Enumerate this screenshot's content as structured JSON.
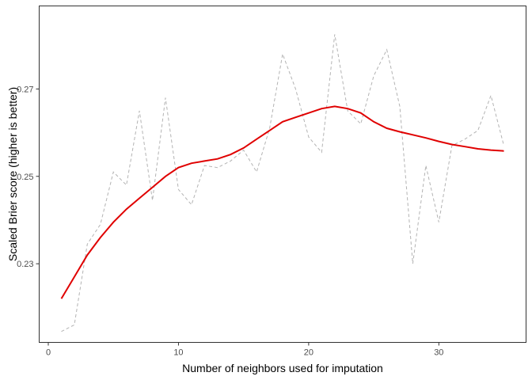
{
  "chart_data": {
    "type": "line",
    "xlabel": "Number of neighbors used for imputation",
    "ylabel": "Scaled Brier score (higher is better)",
    "xlim": [
      -0.7,
      36.7
    ],
    "ylim": [
      0.212,
      0.289
    ],
    "xticks": [
      0,
      10,
      20,
      30
    ],
    "yticks": [
      0.23,
      0.25,
      0.27
    ],
    "ytick_labels": [
      "0.23",
      "0.25",
      "0.27"
    ],
    "grid": false,
    "colors": {
      "raw": "#b3b3b3",
      "smooth": "#e00000",
      "frame": "#333333"
    },
    "series": [
      {
        "style": "dashed",
        "x": [
          1,
          2,
          3,
          4,
          5,
          6,
          7,
          8,
          9,
          10,
          11,
          12,
          13,
          14,
          15,
          16,
          17,
          18,
          19,
          20,
          21,
          22,
          23,
          24,
          25,
          26,
          27,
          28,
          29,
          30,
          31,
          32,
          33,
          34,
          35
        ],
        "y": [
          0.2145,
          0.216,
          0.2345,
          0.239,
          0.251,
          0.248,
          0.265,
          0.2445,
          0.268,
          0.247,
          0.2435,
          0.2525,
          0.252,
          0.2535,
          0.256,
          0.251,
          0.261,
          0.278,
          0.27,
          0.259,
          0.2555,
          0.2825,
          0.265,
          0.262,
          0.273,
          0.279,
          0.266,
          0.23,
          0.2525,
          0.2395,
          0.257,
          0.2585,
          0.2605,
          0.2685,
          0.257
        ]
      },
      {
        "style": "solid",
        "x": [
          1,
          2,
          3,
          4,
          5,
          6,
          7,
          8,
          9,
          10,
          11,
          12,
          13,
          14,
          15,
          16,
          17,
          18,
          19,
          20,
          21,
          22,
          23,
          24,
          25,
          26,
          27,
          28,
          29,
          30,
          31,
          32,
          33,
          34,
          35
        ],
        "y": [
          0.222,
          0.227,
          0.232,
          0.236,
          0.2395,
          0.2425,
          0.245,
          0.2475,
          0.25,
          0.252,
          0.253,
          0.2535,
          0.254,
          0.255,
          0.2565,
          0.2585,
          0.2605,
          0.2625,
          0.2635,
          0.2645,
          0.2655,
          0.266,
          0.2655,
          0.2645,
          0.2625,
          0.261,
          0.2602,
          0.2595,
          0.2588,
          0.258,
          0.2573,
          0.2568,
          0.2563,
          0.256,
          0.2558
        ]
      }
    ]
  }
}
